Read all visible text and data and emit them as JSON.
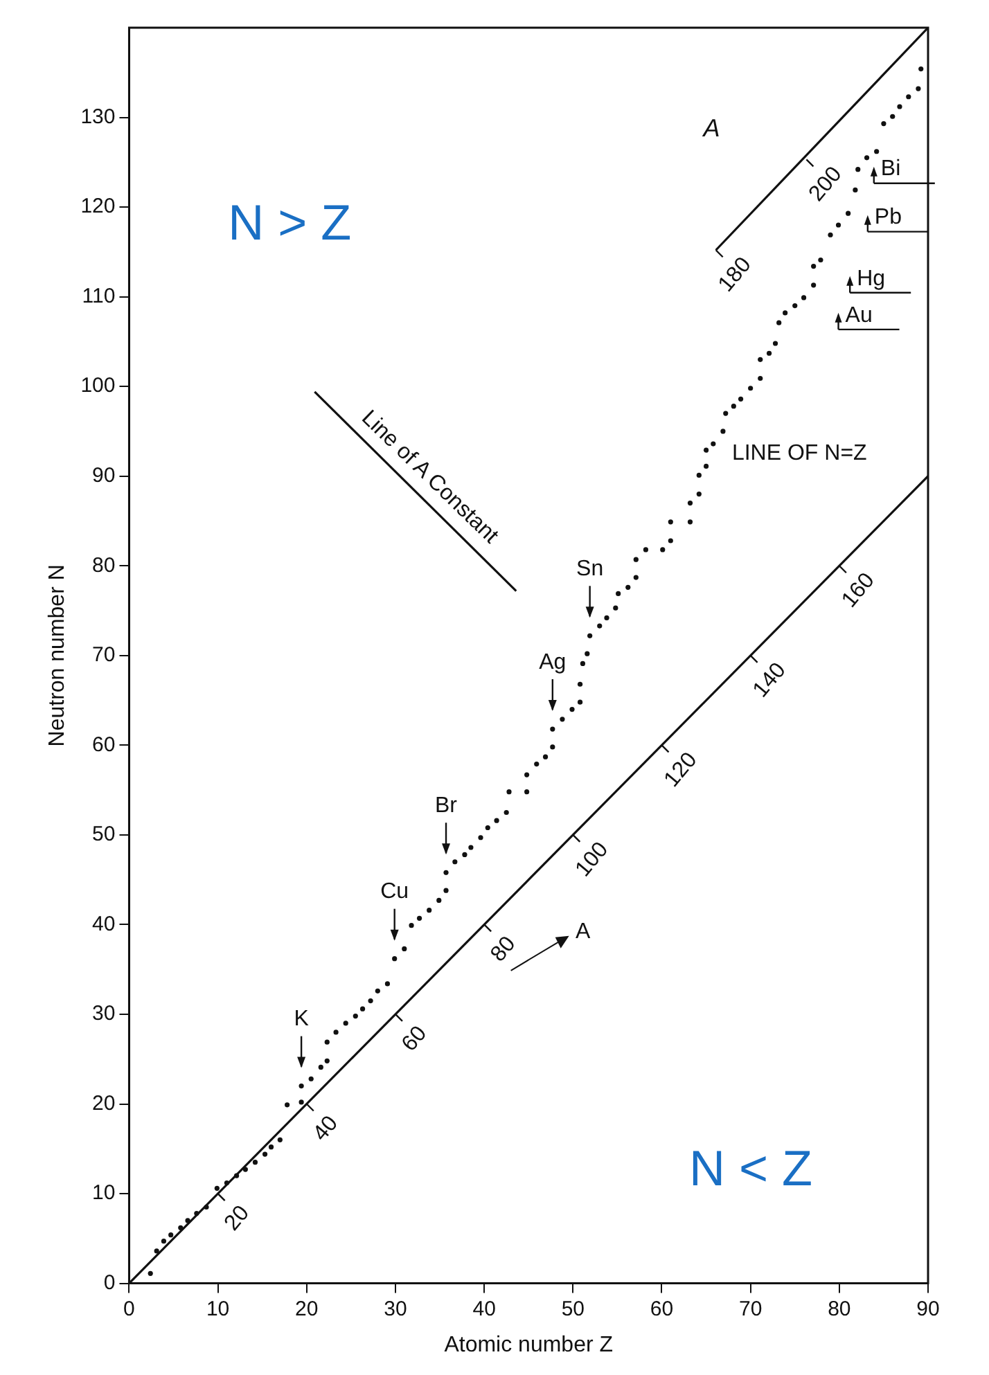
{
  "chart_data": {
    "type": "scatter",
    "xlabel": "Atomic number Z",
    "ylabel": "Neutron number N",
    "xlim": [
      0,
      90
    ],
    "ylim": [
      0,
      140
    ],
    "xticks": [
      0,
      10,
      20,
      30,
      40,
      50,
      60,
      70,
      80,
      90
    ],
    "yticks": [
      0,
      10,
      20,
      30,
      40,
      50,
      60,
      70,
      80,
      90,
      100,
      110,
      120,
      130
    ],
    "grid": false,
    "legend": false,
    "series": [
      {
        "marker": "circle",
        "color": "#111111",
        "x": [
          2.4,
          3.1,
          3.9,
          4.7,
          5.8,
          6.6,
          7.6,
          8.7,
          9.9,
          11,
          12.1,
          13.1,
          14.2,
          15.3,
          16,
          17,
          17.8,
          19.4,
          19.4,
          20.5,
          21.6,
          22.3,
          22.3,
          23.3,
          24.4,
          25.5,
          26.3,
          27.2,
          28,
          29.1,
          29.9,
          31,
          31.8,
          32.7,
          33.8,
          34.9,
          35.7,
          35.7,
          36.7,
          37.8,
          38.5,
          39.6,
          40.4,
          41.4,
          42.5,
          42.8,
          44.8,
          44.8,
          45.9,
          46.9,
          47.7,
          47.7,
          48.8,
          49.9,
          50.8,
          50.8,
          51.1,
          51.6,
          51.9,
          53,
          53.8,
          54.8,
          55.1,
          56.2,
          57.1,
          57.1,
          58.2,
          60.1,
          61,
          61,
          63.2,
          63.2,
          64.2,
          64.2,
          65,
          65,
          65.8,
          66.9,
          67.2,
          68.1,
          68.9,
          70,
          71.1,
          71.1,
          72.1,
          72.8,
          73.2,
          73.9,
          75,
          76,
          77.1,
          77.1,
          77.9,
          79,
          79.9,
          81,
          81.8,
          82.1,
          83.1,
          84.2,
          85,
          86,
          86.8,
          87.8,
          88.9,
          89.2
        ],
        "values": [
          1.1,
          3.6,
          4.7,
          5.4,
          6.2,
          7,
          7.8,
          8.5,
          10.6,
          11.2,
          12,
          12.7,
          13.5,
          14.4,
          15.2,
          16,
          19.9,
          20.2,
          22,
          22.8,
          24.1,
          24.8,
          26.9,
          28,
          29,
          29.8,
          30.6,
          31.5,
          32.6,
          33.4,
          36.2,
          37.3,
          39.9,
          40.7,
          41.6,
          42.7,
          43.8,
          45.8,
          47,
          47.8,
          48.6,
          49.7,
          50.8,
          51.6,
          52.5,
          54.8,
          54.8,
          56.7,
          57.9,
          58.7,
          59.8,
          61.8,
          62.9,
          64,
          64.8,
          66.8,
          69.1,
          70.2,
          72.2,
          73.3,
          74.2,
          75.3,
          76.9,
          77.6,
          78.7,
          80.7,
          81.8,
          81.8,
          82.8,
          84.9,
          84.9,
          87,
          88,
          90.1,
          91.1,
          92.9,
          93.6,
          95,
          97,
          97.8,
          98.6,
          99.8,
          100.9,
          103,
          103.7,
          104.8,
          107.1,
          108.2,
          109,
          109.9,
          111.3,
          113.4,
          114.1,
          116.9,
          118,
          119.3,
          121.9,
          124.2,
          125.5,
          126.2,
          129.3,
          130.1,
          131.2,
          132.3,
          133.2,
          135.4
        ]
      },
      {
        "type": "line",
        "marker": "none",
        "color": "#111111",
        "x": [
          0,
          90
        ],
        "values": [
          0,
          90
        ]
      },
      {
        "type": "line",
        "marker": "none",
        "color": "#111111",
        "x": [
          66.1,
          90
        ],
        "values": [
          115.2,
          140
        ]
      },
      {
        "type": "line",
        "marker": "none",
        "color": "#111111",
        "x": [
          20.9,
          43.6
        ],
        "values": [
          99.4,
          77.2
        ]
      }
    ],
    "annotations": [
      "N > Z",
      "N < Z",
      "Line of A Constant",
      "LINE OF N=Z",
      "A",
      "A",
      {
        "text": "K",
        "x": 19.4,
        "y": 22
      },
      {
        "text": "Cu",
        "x": 29.9,
        "y": 36.2
      },
      {
        "text": "Br",
        "x": 35.7,
        "y": 45.8
      },
      {
        "text": "Ag",
        "x": 47.7,
        "y": 61.8
      },
      {
        "text": "Sn",
        "x": 51.9,
        "y": 72.2
      },
      {
        "text": "Au",
        "x": 79.9,
        "y": 107.9
      },
      {
        "text": "Hg",
        "x": 81.2,
        "y": 112
      },
      {
        "text": "Pb",
        "x": 83.2,
        "y": 118.8
      },
      {
        "text": "Bi",
        "x": 83.9,
        "y": 124.2
      },
      {
        "text": "20",
        "x": 10,
        "y": 10
      },
      {
        "text": "40",
        "x": 20,
        "y": 20
      },
      {
        "text": "60",
        "x": 30,
        "y": 30
      },
      {
        "text": "80",
        "x": 40,
        "y": 40
      },
      {
        "text": "100",
        "x": 50,
        "y": 50
      },
      {
        "text": "120",
        "x": 60,
        "y": 60
      },
      {
        "text": "140",
        "x": 70,
        "y": 70
      },
      {
        "text": "160",
        "x": 80,
        "y": 80
      },
      {
        "text": "180",
        "x": 66.1,
        "y": 115.2
      },
      {
        "text": "200",
        "x": 76.3,
        "y": 125.3
      }
    ]
  }
}
